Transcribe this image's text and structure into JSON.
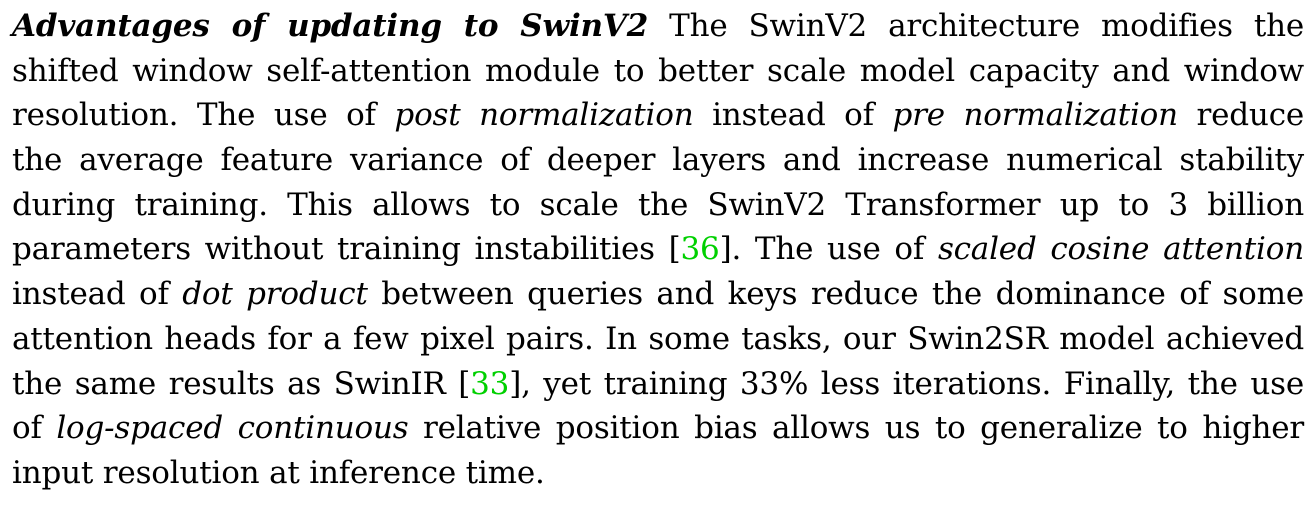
{
  "paragraph": {
    "heading": "Advantages of updating to SwinV2",
    "lines": [
      {
        "parts": [
          {
            "t": "The SwinV2 architecture modifies the",
            "s": "plain"
          }
        ]
      },
      {
        "parts": [
          {
            "t": "shifted window self-attention module to better scale model capacity and window",
            "s": "plain"
          }
        ]
      },
      {
        "parts": [
          {
            "t": "resolution. The use of ",
            "s": "plain"
          },
          {
            "t": "post normalization",
            "s": "em"
          },
          {
            "t": " instead of ",
            "s": "plain"
          },
          {
            "t": "pre normalization",
            "s": "em"
          },
          {
            "t": " reduce",
            "s": "plain"
          }
        ]
      },
      {
        "parts": [
          {
            "t": "the average feature variance of deeper layers and increase numerical stability",
            "s": "plain"
          }
        ]
      },
      {
        "parts": [
          {
            "t": "during training. This allows to scale the SwinV2 Transformer up to 3 billion",
            "s": "plain"
          }
        ]
      },
      {
        "parts": [
          {
            "t": "parameters without training instabilities [",
            "s": "plain"
          },
          {
            "t": "36",
            "s": "cite"
          },
          {
            "t": "]. The use of ",
            "s": "plain"
          },
          {
            "t": "scaled cosine attention",
            "s": "em"
          }
        ]
      },
      {
        "parts": [
          {
            "t": "instead of ",
            "s": "plain"
          },
          {
            "t": "dot product",
            "s": "em"
          },
          {
            "t": " between queries and keys reduce the dominance of some",
            "s": "plain"
          }
        ]
      },
      {
        "parts": [
          {
            "t": "attention heads for a few pixel pairs. In some tasks, our Swin2SR model achieved",
            "s": "plain"
          }
        ]
      },
      {
        "parts": [
          {
            "t": "the same results as SwinIR [",
            "s": "plain"
          },
          {
            "t": "33",
            "s": "cite"
          },
          {
            "t": "], yet training 33% less iterations. Finally, the use",
            "s": "plain"
          }
        ]
      },
      {
        "parts": [
          {
            "t": "of ",
            "s": "plain"
          },
          {
            "t": "log-spaced continuous",
            "s": "em"
          },
          {
            "t": " relative position bias allows us to generalize to higher",
            "s": "plain"
          }
        ]
      },
      {
        "parts": [
          {
            "t": "input resolution at inference time.",
            "s": "plain"
          }
        ]
      }
    ]
  },
  "colors": {
    "text": "#000000",
    "citation": "#00d000",
    "background": "#ffffff"
  }
}
